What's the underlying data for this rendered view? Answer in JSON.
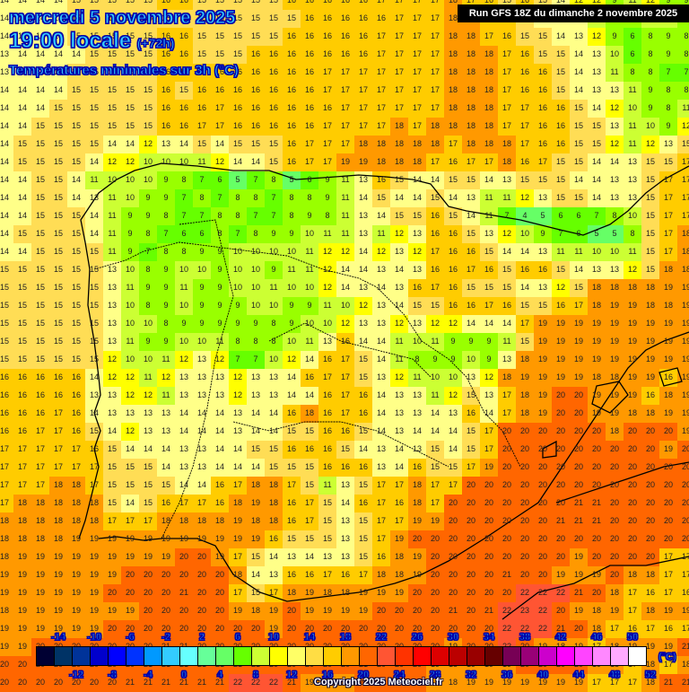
{
  "header": {
    "date": "mercredi 5 novembre 2025",
    "time": "19:00 locale",
    "lead": "(+72h)",
    "parameter": "Températures minimales sur 3h (°C)",
    "run": "Run GFS 18Z du dimanche 2 novembre 2025"
  },
  "colorbar": {
    "unit": "(°C)",
    "top_ticks": [
      "-14",
      "-10",
      "-6",
      "-2",
      "2",
      "6",
      "10",
      "14",
      "18",
      "22",
      "26",
      "30",
      "34",
      "38",
      "42",
      "46",
      "50"
    ],
    "bottom_ticks": [
      "-12",
      "-8",
      "-4",
      "0",
      "4",
      "8",
      "12",
      "16",
      "20",
      "24",
      "28",
      "32",
      "36",
      "40",
      "44",
      "48",
      "52"
    ],
    "colors": [
      "#000033",
      "#003366",
      "#003399",
      "#0000cc",
      "#0000ff",
      "#0033ff",
      "#0099ff",
      "#33ccff",
      "#66ffff",
      "#66ff99",
      "#66ff66",
      "#66ff00",
      "#ccff33",
      "#ffff00",
      "#ffff66",
      "#ffdd44",
      "#ffcc00",
      "#ff9900",
      "#ff6600",
      "#ff5533",
      "#ff3300",
      "#ff0000",
      "#dd0000",
      "#bb0000",
      "#990000",
      "#660000",
      "#770055",
      "#990077",
      "#cc00cc",
      "#ff00ff",
      "#ff44ff",
      "#ff88ff",
      "#ffaaff",
      "#ffffff"
    ]
  },
  "copyright": "Copyright 2025 Meteociel.fr",
  "grid": {
    "rows": [
      "14 14 14 14 15 15 15 15 15 16 16 15 15 15 15 15 16 16 16 16 16 17 17 17 17 18 17 16 15 16 15 14 12 12 9 11 12 9 9",
      "14 14 14 14 15 15 15 15 15 15 15 15 15 15 15 15 15 16 16 16 16 16 17 17 17 18 18 17 16 15 14 14 13 11 9 8 10 10 9",
      "14 14 14 14 15 15 15 15 15 16 16 15 15 15 15 15 16 16 16 16 16 17 17 17 17 18 18 17 16 15 15 14 13 12 9 6 8 9 8",
      "13 14 14 14 14 15 15 15 15 16 16 15 15 15 16 16 16 16 16 16 16 17 17 17 17 18 18 18 17 16 15 15 14 13 10 6 8 9 8",
      "13 14 14 14 15 15 15 15 15 16 16 16 16 16 16 16 16 16 17 17 17 17 17 17 17 18 18 18 17 16 16 15 14 13 11 8 8 7 7",
      "14 14 14 14 15 15 15 15 15 16 15 16 16 16 16 16 16 16 17 17 17 17 17 17 17 18 18 18 17 16 16 15 14 13 13 11 9 8 8",
      "14 14 14 15 15 15 15 15 15 16 16 16 17 16 16 16 16 16 16 17 17 17 17 17 17 18 18 18 17 17 16 16 15 14 12 10 9 8 11",
      "14 14 15 15 15 15 15 15 15 16 16 17 17 16 16 16 16 16 17 17 17 17 18 17 18 18 18 18 17 17 16 16 15 15 13 11 10 9 12",
      "14 15 15 15 15 15 14 14 12 13 14 15 14 15 15 15 16 17 17 17 18 18 18 18 18 17 18 18 18 17 16 16 15 15 12 11 12 13 15",
      "14 15 15 15 15 14 12 12 10 10 10 11 12 14 14 15 16 17 17 19 19 18 18 18 17 16 17 17 18 16 17 15 15 14 14 13 15 15 17",
      "14 14 15 15 14 11 10 10 10 9 8 7 6 5 7 8 5 6 9 11 13 16 15 14 14 15 15 14 13 15 15 15 14 14 13 13 15 17 17",
      "14 14 15 15 14 13 11 10 9 9 7 8 7 8 8 7 8 8 9 11 14 15 14 14 15 14 13 11 11 12 13 15 15 14 13 13 15 17 17",
      "14 14 15 15 15 14 11 9 9 8 7 7 8 8 7 7 8 9 8 11 13 14 15 15 16 15 14 11 7 4 5 6 6 7 8 10 15 17 17",
      "14 15 15 15 15 14 11 9 8 7 6 6 8 7 8 9 9 10 11 11 13 11 12 13 16 16 15 13 12 10 9 7 6 5 5 8 15 17 18",
      "14 14 15 15 15 15 11 9 7 8 8 9 9 10 10 10 10 11 12 12 14 12 13 12 17 16 16 15 14 14 13 11 11 10 10 11 15 17 18",
      "15 15 15 15 15 15 13 10 8 9 10 10 9 10 10 9 11 11 12 14 14 13 14 13 16 16 17 16 15 16 16 15 14 13 13 12 15 18 18",
      "15 15 15 15 15 15 13 11 9 9 11 9 9 10 10 11 10 10 12 14 13 14 13 16 17 16 15 15 15 14 13 12 15 18 18 18 18 19 19",
      "15 15 15 15 15 15 13 10 8 9 10 9 9 9 10 10 9 9 11 10 12 13 14 15 15 16 16 17 16 15 15 16 17 18 19 19 18 18 19",
      "15 15 15 15 15 15 13 10 10 8 9 9 9 9 9 8 9 10 10 12 13 13 12 13 12 12 14 14 14 17 19 19 19 19 19 19 19 19 19",
      "15 15 15 15 15 15 13 11 9 9 10 10 11 8 8 8 10 11 13 16 14 14 11 10 11 9 9 9 11 15 19 19 19 19 19 19 19 19 19",
      "15 15 15 15 15 15 12 10 10 11 12 13 12 7 7 10 12 14 16 17 15 14 11 8 9 9 10 9 13 18 19 19 19 19 19 19 19 19 19",
      "16 16 16 16 16 14 12 12 11 12 13 13 13 12 13 13 14 16 17 17 15 13 12 11 10 10 13 12 18 19 19 19 19 18 18 19 19 16 19",
      "16 16 16 16 16 13 13 12 12 11 13 13 13 12 13 13 14 14 16 17 16 14 13 13 11 12 15 13 17 18 19 20 20 19 19 19 16 18 19",
      "16 16 16 17 16 14 13 13 13 13 14 14 14 13 14 14 16 18 16 17 16 14 13 13 14 13 16 14 17 18 19 20 20 19 19 18 18 19 19",
      "16 16 17 17 16 15 14 12 13 13 14 14 14 13 14 14 15 15 16 16 15 14 13 14 14 14 15 17 20 20 20 20 20 20 18 20 20 20 19",
      "17 17 17 17 17 16 15 14 14 14 13 13 14 14 15 15 16 16 16 15 14 13 14 13 15 14 15 17 20 20 20 20 20 20 20 20 20 19 20",
      "17 17 17 17 17 17 15 15 15 14 13 13 14 14 14 15 15 15 16 16 16 13 14 16 15 15 17 19 20 20 20 20 20 20 20 20 20 20 20",
      "17 17 17 18 18 17 15 15 15 15 14 14 16 17 18 18 17 15 11 13 15 17 17 18 17 17 20 20 20 20 20 20 20 20 20 20 20 20 20",
      "17 18 18 18 18 18 15 14 15 16 17 17 16 18 19 18 16 17 15 14 16 17 16 18 17 20 20 20 20 20 20 20 21 21 20 20 20 20 20",
      "18 18 18 18 18 18 17 17 17 18 18 18 18 19 18 18 16 17 15 13 15 17 17 19 19 20 20 20 20 20 20 21 21 21 20 20 20 20 20",
      "18 18 18 18 19 19 19 19 19 19 19 19 19 19 19 16 15 15 15 13 15 17 19 20 20 20 20 20 20 20 20 20 20 20 20 20 20 20 20",
      "18 19 19 19 19 19 19 19 19 19 20 20 19 17 15 14 13 14 13 13 15 16 18 19 20 20 20 20 20 20 20 20 19 20 20 20 20 17 17",
      "19 19 19 19 19 19 19 20 20 20 20 20 20 18 14 13 16 16 17 16 17 18 18 19 20 20 20 20 21 20 20 19 19 19 20 18 18 17 17",
      "19 19 19 19 19 19 20 20 20 20 21 20 20 17 15 17 18 19 18 18 19 19 19 20 20 20 20 20 20 22 22 22 21 20 18 17 16 17 16",
      "18 19 19 19 19 19 19 19 20 20 20 20 20 19 18 19 20 19 19 19 19 20 20 20 20 21 20 21 22 23 22 20 19 18 19 17 18 19 19",
      "19 19 19 19 19 19 20 20 20 20 20 20 20 20 20 19 20 20 20 20 20 20 20 20 20 20 20 20 22 22 22 21 20 18 17 16 17 16 17",
      "19 19 20 20 20 20 20 20 20 21 21 20 20 20 20 20 20 20 20 20 20 20 20 20 20 19 20 20 22 20 19 18 19 17 18 19 19 19 21",
      "20 20 20 20 20 20 20 20 21 21 21 21 21 21 21 20 20 20 20 20 21 20 20 20 19 18 19 19 19 20 20 20 20 19 18 17 18 17 18",
      "20 20 20 20 20 20 20 21 21 21 21 21 21 22 22 22 21 19 19 19 20 20 20 20 19 18 19 19 19 19 19 19 19 17 17 17 18 21 21"
    ]
  }
}
